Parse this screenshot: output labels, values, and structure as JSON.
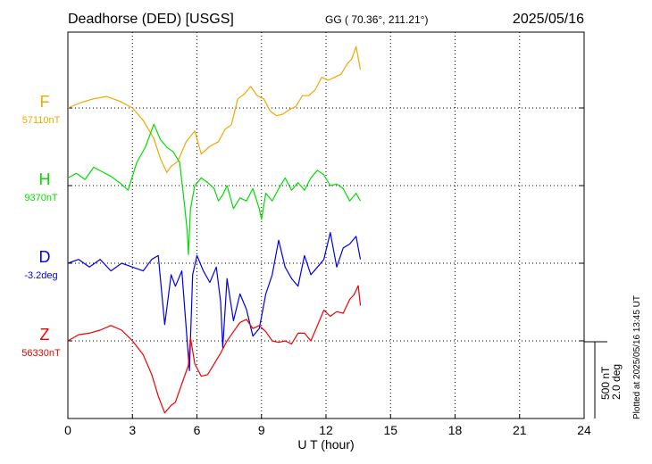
{
  "header": {
    "station": "Deadhorse (DED)  [USGS]",
    "coords": "GG ( 70.36°, 211.21°)",
    "date": "2025/05/16"
  },
  "plotted_note": "Plotted at 2025/05/16 13:45 UT",
  "scale_labels": {
    "nt": "500 nT",
    "deg": "2.0 deg"
  },
  "chart_data": {
    "type": "line",
    "xlabel": "U T (hour)",
    "xlim": [
      0,
      24
    ],
    "xticks": [
      0,
      3,
      6,
      9,
      12,
      15,
      18,
      21,
      24
    ],
    "grid": true,
    "series": [
      {
        "name": "F",
        "baseline_label": "57110nT",
        "color": "#f0a800",
        "lane": 0,
        "x": [
          0,
          0.6,
          1.2,
          1.8,
          2.4,
          3.0,
          3.5,
          4.0,
          4.3,
          4.6,
          4.8,
          5.1,
          5.5,
          5.9,
          6.2,
          6.6,
          7.0,
          7.3,
          7.6,
          7.9,
          8.2,
          8.5,
          8.8,
          9.1,
          9.4,
          9.7,
          10.0,
          10.3,
          10.6,
          10.9,
          11.2,
          11.5,
          11.8,
          12.1,
          12.4,
          12.7,
          13.0,
          13.2,
          13.4,
          13.6
        ],
        "y": [
          0,
          35,
          60,
          75,
          45,
          0,
          -80,
          -200,
          -330,
          -420,
          -380,
          -350,
          -220,
          -150,
          -300,
          -250,
          -220,
          -140,
          -110,
          60,
          90,
          140,
          80,
          60,
          -20,
          -50,
          -40,
          -10,
          10,
          80,
          80,
          120,
          200,
          180,
          200,
          220,
          290,
          320,
          400,
          250
        ]
      },
      {
        "name": "H",
        "baseline_label": "9370nT",
        "color": "#00dd00",
        "lane": 1,
        "x": [
          0,
          0.4,
          0.8,
          1.2,
          1.6,
          2.0,
          2.4,
          2.8,
          3.2,
          3.6,
          4.0,
          4.3,
          4.6,
          4.9,
          5.2,
          5.4,
          5.55,
          5.6,
          5.7,
          5.9,
          6.2,
          6.5,
          6.8,
          7.0,
          7.2,
          7.4,
          7.7,
          8.0,
          8.3,
          8.6,
          8.9,
          9.0,
          9.2,
          9.5,
          9.8,
          10.1,
          10.4,
          10.7,
          11.0,
          11.3,
          11.6,
          11.9,
          12.2,
          12.5,
          12.8,
          13.1,
          13.4,
          13.6
        ],
        "y": [
          50,
          80,
          40,
          120,
          90,
          60,
          20,
          -30,
          150,
          250,
          400,
          300,
          250,
          220,
          150,
          -100,
          -300,
          -450,
          -150,
          0,
          50,
          20,
          -20,
          -100,
          -60,
          0,
          -150,
          -80,
          -100,
          -20,
          -150,
          -220,
          -50,
          -100,
          -20,
          50,
          -30,
          20,
          -30,
          50,
          100,
          70,
          0,
          10,
          -20,
          -100,
          -50,
          -100
        ]
      },
      {
        "name": "D",
        "baseline_label": "-3.2deg",
        "color": "#0000ee",
        "lane": 2,
        "x": [
          0,
          0.5,
          1.0,
          1.5,
          2.0,
          2.5,
          3.0,
          3.5,
          3.9,
          4.2,
          4.5,
          4.8,
          5.0,
          5.3,
          5.5,
          5.65,
          5.8,
          6.0,
          6.3,
          6.6,
          6.9,
          7.1,
          7.2,
          7.4,
          7.7,
          8.0,
          8.3,
          8.6,
          8.9,
          9.2,
          9.5,
          9.8,
          10.1,
          10.4,
          10.7,
          11.0,
          11.3,
          11.6,
          11.9,
          12.2,
          12.5,
          12.8,
          13.1,
          13.4,
          13.6
        ],
        "y": [
          0,
          0.1,
          -0.1,
          0.1,
          -0.2,
          0,
          -0.1,
          -0.2,
          0.1,
          0.2,
          -1.6,
          -0.3,
          -0.6,
          -0.2,
          -1.7,
          -2.8,
          -0.3,
          0.2,
          -0.2,
          -0.5,
          -0.1,
          -1.0,
          -2.2,
          -0.4,
          -1.5,
          -0.8,
          -1.2,
          -1.9,
          -1.7,
          -0.8,
          -0.3,
          0.6,
          -0.1,
          -0.4,
          -0.6,
          0.2,
          -0.3,
          -0.1,
          0.1,
          0.8,
          -0.1,
          0.4,
          0.5,
          0.7,
          0.1
        ]
      },
      {
        "name": "Z",
        "baseline_label": "56330nT",
        "color": "#ee0000",
        "lane": 3,
        "x": [
          0,
          0.5,
          1.0,
          1.5,
          2.0,
          2.5,
          3.0,
          3.5,
          3.9,
          4.2,
          4.5,
          4.8,
          5.0,
          5.3,
          5.6,
          5.7,
          5.9,
          6.2,
          6.5,
          6.8,
          7.1,
          7.4,
          7.7,
          8.0,
          8.3,
          8.6,
          8.9,
          9.2,
          9.5,
          9.8,
          10.1,
          10.4,
          10.7,
          11.0,
          11.3,
          11.6,
          11.9,
          12.2,
          12.5,
          12.8,
          13.1,
          13.3,
          13.5,
          13.6
        ],
        "y": [
          0,
          40,
          50,
          70,
          100,
          70,
          0,
          -90,
          -220,
          -360,
          -470,
          -420,
          -400,
          -280,
          -160,
          20,
          -150,
          -230,
          -220,
          -150,
          -80,
          0,
          60,
          120,
          140,
          80,
          100,
          60,
          0,
          -10,
          0,
          -20,
          50,
          50,
          0,
          100,
          200,
          160,
          190,
          180,
          270,
          300,
          360,
          230
        ]
      }
    ]
  }
}
